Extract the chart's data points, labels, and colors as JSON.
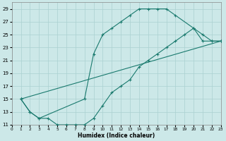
{
  "xlabel": "Humidex (Indice chaleur)",
  "bg_color": "#cce8e8",
  "line_color": "#1a7a6e",
  "grid_color": "#aad0d0",
  "xlim": [
    0,
    23
  ],
  "ylim": [
    11,
    30
  ],
  "xticks": [
    0,
    1,
    2,
    3,
    4,
    5,
    6,
    7,
    8,
    9,
    10,
    11,
    12,
    13,
    14,
    15,
    16,
    17,
    18,
    19,
    20,
    21,
    22,
    23
  ],
  "yticks": [
    11,
    13,
    15,
    17,
    19,
    21,
    23,
    25,
    27,
    29
  ],
  "line1_x": [
    1,
    2,
    3,
    8,
    9,
    10,
    11,
    12,
    13,
    14,
    15,
    16,
    17,
    18,
    20,
    21,
    22,
    23
  ],
  "line1_y": [
    15,
    13,
    12,
    15,
    22,
    25,
    26,
    27,
    28,
    29,
    29,
    29,
    29,
    28,
    26,
    24,
    24,
    24
  ],
  "line2_x": [
    1,
    2,
    3,
    4,
    5,
    6,
    7,
    8,
    9,
    10,
    11,
    12,
    13,
    14,
    15,
    16,
    17,
    18,
    19,
    20,
    21,
    22,
    23
  ],
  "line2_y": [
    15,
    13,
    12,
    12,
    11,
    11,
    11,
    11,
    12,
    14,
    16,
    17,
    18,
    20,
    21,
    22,
    23,
    24,
    25,
    26,
    25,
    24,
    24
  ],
  "line3_x": [
    1,
    23
  ],
  "line3_y": [
    15,
    24
  ]
}
